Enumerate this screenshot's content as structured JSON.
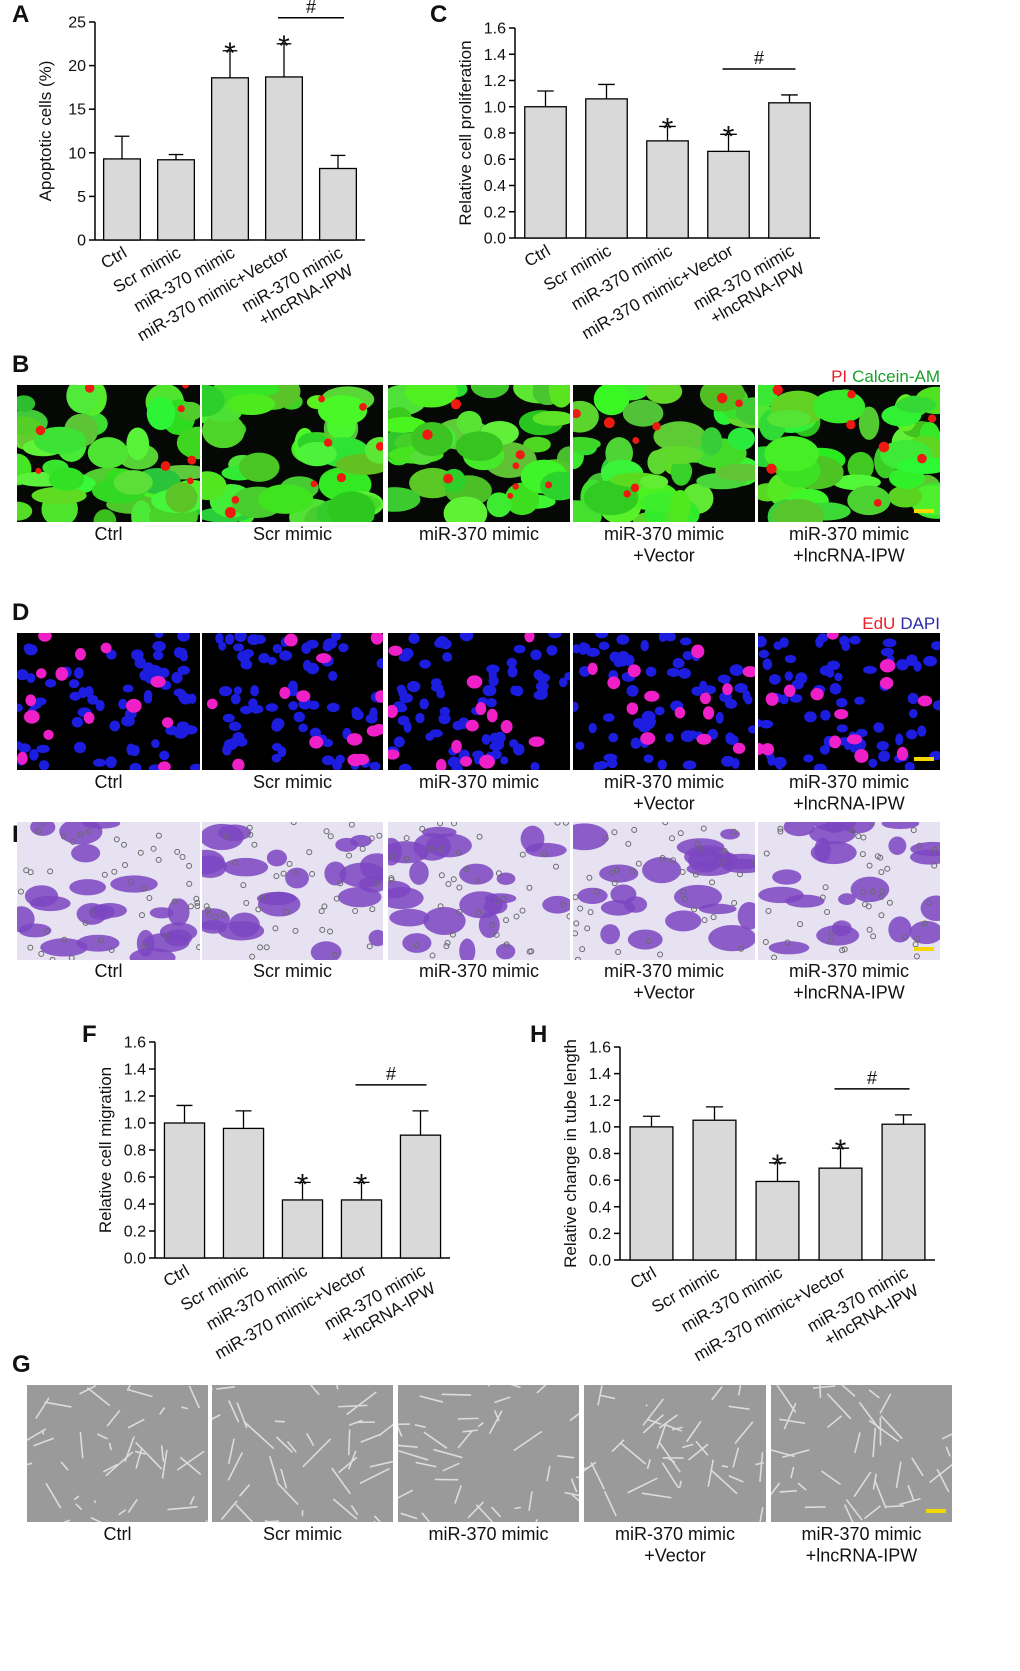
{
  "chart_data": [
    {
      "type": "bar",
      "panel": "A",
      "ylabel": "Apoptotic cells (%)",
      "categories": [
        "Ctrl",
        "Scr mimic",
        "miR-370 mimic",
        "miR-370 mimic+Vector",
        "miR-370 mimic\n+lncRNA-IPW"
      ],
      "values": [
        9.3,
        9.2,
        18.6,
        18.7,
        8.2
      ],
      "errors": [
        2.6,
        0.6,
        3.1,
        3.8,
        1.5
      ],
      "significance": [
        null,
        null,
        "*",
        "*",
        null
      ],
      "comparison_label": "#",
      "color": "#d9d9d9",
      "ylim": [
        0,
        25
      ],
      "yticks": [
        0,
        5,
        10,
        15,
        20,
        25
      ]
    },
    {
      "type": "bar",
      "panel": "C",
      "ylabel": "Relative cell proliferation",
      "categories": [
        "Ctrl",
        "Scr mimic",
        "miR-370 mimic",
        "miR-370 mimic+Vector",
        "miR-370 mimic\n+lncRNA-IPW"
      ],
      "values": [
        1.0,
        1.06,
        0.74,
        0.66,
        1.03
      ],
      "errors": [
        0.12,
        0.11,
        0.11,
        0.13,
        0.06
      ],
      "significance": [
        null,
        null,
        "*",
        "*",
        null
      ],
      "comparison_label": "#",
      "color": "#d9d9d9",
      "ylim": [
        0,
        1.6
      ],
      "yticks": [
        {
          "value": 0,
          "label": "0.0"
        },
        0.2,
        0.4,
        0.6,
        0.8,
        {
          "value": 1,
          "label": "1.0"
        },
        1.2,
        1.4,
        1.6
      ]
    },
    {
      "type": "bar",
      "panel": "F",
      "ylabel": "Relative cell migration",
      "categories": [
        "Ctrl",
        "Scr mimic",
        "miR-370 mimic",
        "miR-370 mimic+Vector",
        "miR-370 mimic\n+lncRNA-IPW"
      ],
      "values": [
        1.0,
        0.96,
        0.43,
        0.43,
        0.91
      ],
      "errors": [
        0.13,
        0.13,
        0.13,
        0.13,
        0.18
      ],
      "significance": [
        null,
        null,
        "*",
        "*",
        null
      ],
      "comparison_label": "#",
      "color": "#d9d9d9",
      "ylim": [
        0,
        1.6
      ],
      "yticks": [
        {
          "value": 0,
          "label": "0.0"
        },
        0.2,
        0.4,
        0.6,
        0.8,
        {
          "value": 1,
          "label": "1.0"
        },
        1.2,
        1.4,
        1.6
      ]
    },
    {
      "type": "bar",
      "panel": "H",
      "ylabel": "Relative change in tube length",
      "categories": [
        "Ctrl",
        "Scr mimic",
        "miR-370 mimic",
        "miR-370 mimic+Vector",
        "miR-370 mimic\n+lncRNA-IPW"
      ],
      "values": [
        1.0,
        1.05,
        0.59,
        0.69,
        1.02
      ],
      "errors": [
        0.08,
        0.1,
        0.14,
        0.15,
        0.07
      ],
      "significance": [
        null,
        null,
        "*",
        "*",
        null
      ],
      "comparison_label": "#",
      "color": "#d9d9d9",
      "ylim": [
        0,
        1.6
      ],
      "yticks": [
        {
          "value": 0,
          "label": "0.0"
        },
        0.2,
        0.4,
        0.6,
        0.8,
        {
          "value": 1,
          "label": "1.0"
        },
        1.2,
        1.4,
        1.6
      ]
    }
  ],
  "image_panels": [
    {
      "panel": "B",
      "legend": [
        {
          "text": "PI",
          "color": "#e8202a"
        },
        {
          "text": "Calcein-AM",
          "color": "#1aa02a"
        }
      ],
      "captions": [
        "Ctrl",
        "Scr mimic",
        "miR-370 mimic",
        "miR-370 mimic\n+Vector",
        "miR-370 mimic\n+lncRNA-IPW"
      ]
    },
    {
      "panel": "D",
      "legend": [
        {
          "text": "EdU",
          "color": "#e8202a"
        },
        {
          "text": "DAPI",
          "color": "#2a2aa8"
        }
      ],
      "captions": [
        "Ctrl",
        "Scr mimic",
        "miR-370 mimic",
        "miR-370 mimic\n+Vector",
        "miR-370 mimic\n+lncRNA-IPW"
      ]
    },
    {
      "panel": "E",
      "legend": [],
      "captions": [
        "Ctrl",
        "Scr mimic",
        "miR-370 mimic",
        "miR-370 mimic\n+Vector",
        "miR-370 mimic\n+lncRNA-IPW"
      ]
    },
    {
      "panel": "G",
      "legend": [],
      "captions": [
        "Ctrl",
        "Scr mimic",
        "miR-370 mimic",
        "miR-370 mimic\n+Vector",
        "miR-370 mimic\n+lncRNA-IPW"
      ]
    }
  ]
}
